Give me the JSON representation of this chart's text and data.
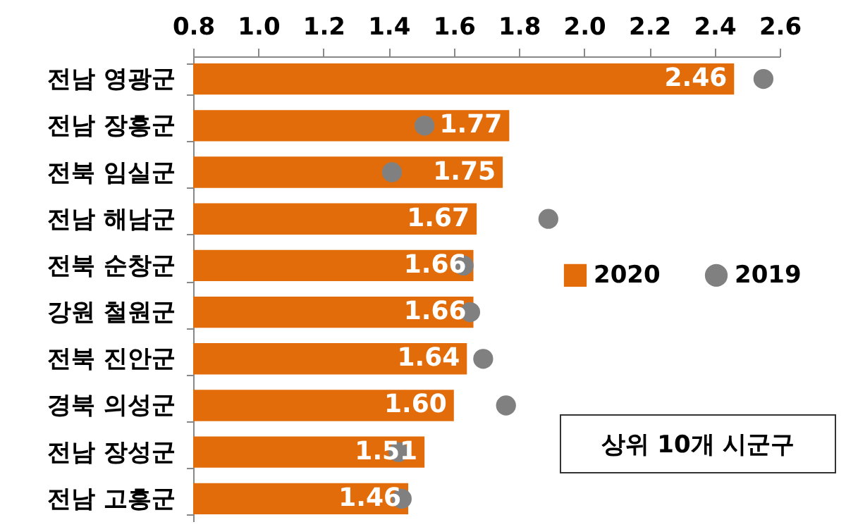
{
  "chart_data": {
    "type": "bar",
    "orientation": "horizontal",
    "legend": "right",
    "categories": [
      "전남 영광군",
      "전남 장흥군",
      "전북 임실군",
      "전남 해남군",
      "전북 순창군",
      "강원 철원군",
      "전북 진안군",
      "경북 의성군",
      "전남 장성군",
      "전남 고흥군"
    ],
    "series": [
      {
        "name": "2020",
        "color": "#e36c0a",
        "values": [
          2.46,
          1.77,
          1.75,
          1.67,
          1.66,
          1.66,
          1.64,
          1.6,
          1.51,
          1.46
        ],
        "value_labels": [
          "2.46",
          "1.77",
          "1.75",
          "1.67",
          "1.66",
          "1.66",
          "1.64",
          "1.60",
          "1.51",
          "1.46"
        ]
      },
      {
        "name": "2019",
        "type": "scatter",
        "color": "#808080",
        "values": [
          2.55,
          1.51,
          1.41,
          1.89,
          1.63,
          1.65,
          1.69,
          1.76,
          1.43,
          1.44
        ]
      }
    ],
    "marker": "circle",
    "xlim": [
      0.8,
      2.6
    ],
    "xticks": [
      0.8,
      {
        "value": 1,
        "label": "1.0"
      },
      1.2,
      1.4,
      1.6,
      1.8,
      {
        "value": 2,
        "label": "2.0"
      },
      2.2,
      2.4,
      2.6
    ],
    "annotations": [
      "상위 10개 시군구"
    ]
  }
}
